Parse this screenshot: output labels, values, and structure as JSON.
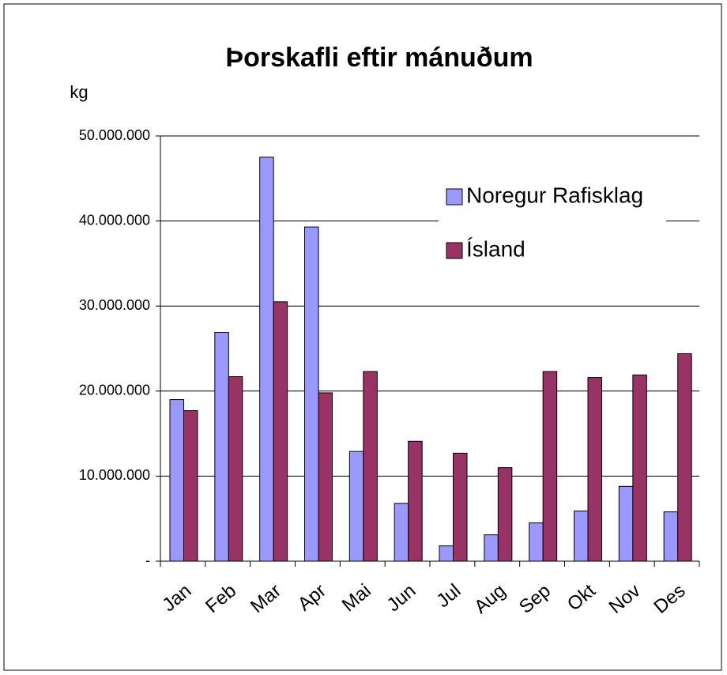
{
  "chart_data": {
    "type": "bar",
    "title": "Þorskafli eftir mánuðum",
    "y_label": "kg",
    "categories": [
      "Jan",
      "Feb",
      "Mar",
      "Apr",
      "Mai",
      "Jun",
      "Jul",
      "Aug",
      "Sep",
      "Okt",
      "Nov",
      "Des"
    ],
    "series": [
      {
        "name": "Noregur Rafisklag",
        "color": "#9999ff",
        "values": [
          19000000,
          26900000,
          47500000,
          39300000,
          12900000,
          6800000,
          1800000,
          3100000,
          4500000,
          5900000,
          8800000,
          5800000
        ]
      },
      {
        "name": "Ísland",
        "color": "#993366",
        "values": [
          17700000,
          21700000,
          30500000,
          19800000,
          22300000,
          14100000,
          12700000,
          11000000,
          22300000,
          21600000,
          21900000,
          24400000
        ]
      }
    ],
    "ylim": [
      0,
      50000000
    ],
    "yticks": [
      {
        "value": 0,
        "label": "-"
      },
      {
        "value": 10000000,
        "label": "10.000.000"
      },
      {
        "value": 20000000,
        "label": "20.000.000"
      },
      {
        "value": 30000000,
        "label": "30.000.000"
      },
      {
        "value": 40000000,
        "label": "40.000.000"
      },
      {
        "value": 50000000,
        "label": "50.000.000"
      }
    ],
    "grid": true,
    "legend": "upper right"
  }
}
